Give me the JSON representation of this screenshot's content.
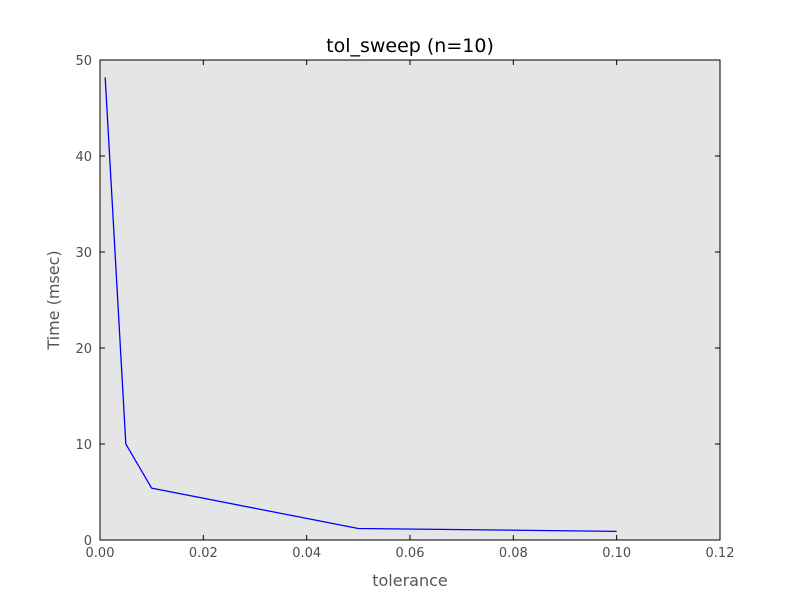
{
  "chart_data": {
    "type": "line",
    "title": "tol_sweep (n=10)",
    "xlabel": "tolerance",
    "ylabel": "Time (msec)",
    "xlim": [
      0,
      0.12
    ],
    "ylim": [
      0,
      50
    ],
    "xticks": [
      "0.00",
      "0.02",
      "0.04",
      "0.06",
      "0.08",
      "0.10",
      "0.12"
    ],
    "yticks": [
      "0",
      "10",
      "20",
      "30",
      "40",
      "50"
    ],
    "grid": false,
    "background": "#e5e5e5",
    "series": [
      {
        "color": "#0000ff",
        "x": [
          0.001,
          0.005,
          0.01,
          0.05,
          0.1
        ],
        "y": [
          48.2,
          10.0,
          5.4,
          1.2,
          0.9
        ]
      }
    ]
  }
}
